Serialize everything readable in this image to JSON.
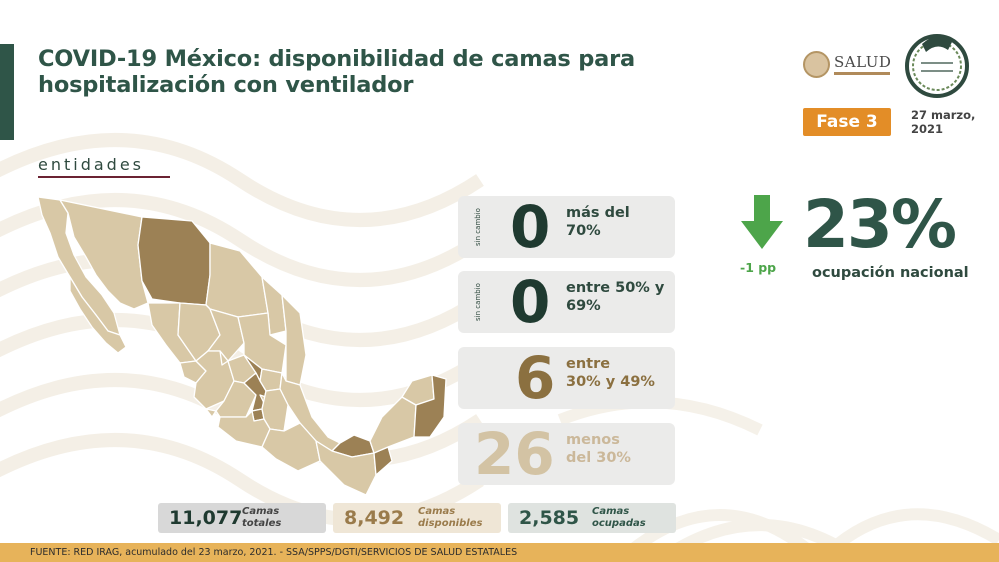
{
  "header": {
    "title_line1": "COVID-19 México: disponibilidad de camas para",
    "title_line2": "hospitalización con ventilador",
    "salud_logo_text": "SALUD",
    "phase_badge": "Fase 3",
    "date_line1": "27 marzo,",
    "date_line2": "2021"
  },
  "section_label": "entidades",
  "categories": [
    {
      "value": "0",
      "label_line1": "más del",
      "label_line2": "70%",
      "side_note": "sin cambio",
      "color": "#1f3a30"
    },
    {
      "value": "0",
      "label_line1": "entre 50% y",
      "label_line2": "69%",
      "side_note": "sin cambio",
      "color": "#1f3a30"
    },
    {
      "value": "6",
      "label_line1": "entre",
      "label_line2": "30% y 49%",
      "side_note": "",
      "color": "#8b7040"
    },
    {
      "value": "26",
      "label_line1": "menos",
      "label_line2": "del 30%",
      "side_note": "",
      "color": "#d3c3a4"
    }
  ],
  "occupancy": {
    "direction": "down",
    "change": "-1 pp",
    "value": "23%",
    "label": "ocupación nacional",
    "arrow_color": "#4da54a"
  },
  "totals": [
    {
      "value": "11,077",
      "label_line1": "Camas",
      "label_line2": "totales"
    },
    {
      "value": "8,492",
      "label_line1": "Camas",
      "label_line2": "disponibles"
    },
    {
      "value": "2,585",
      "label_line1": "Camas",
      "label_line2": "ocupadas"
    }
  ],
  "footer_text": "FUENTE: RED IRAG, acumulado del 23 marzo, 2021. -  SSA/SPPS/DGTI/SERVICIOS DE SALUD ESTATALES",
  "colors": {
    "primary_green": "#2f5548",
    "accent_orange": "#e38d27",
    "footer_gold": "#e7b35a",
    "map_light": "#d8c8a6",
    "map_dark": "#9c8155"
  }
}
